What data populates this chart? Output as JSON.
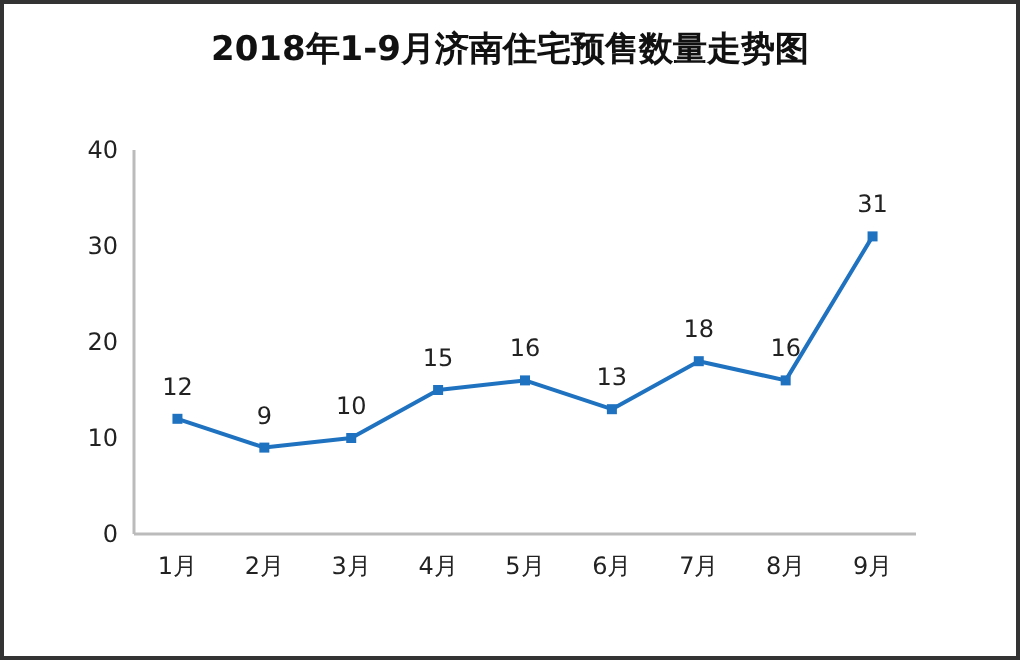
{
  "chart_data": {
    "type": "line",
    "title": "2018年1-9月济南住宅预售数量走势图",
    "categories": [
      "1月",
      "2月",
      "3月",
      "4月",
      "5月",
      "6月",
      "7月",
      "8月",
      "9月"
    ],
    "values": [
      12,
      9,
      10,
      15,
      16,
      13,
      18,
      16,
      31
    ],
    "color": "#1f72c0",
    "ylim": [
      0,
      40
    ],
    "yticks": [
      0,
      10,
      20,
      30,
      40
    ],
    "data_labels": true,
    "marker": "square",
    "line_style": "solid"
  }
}
